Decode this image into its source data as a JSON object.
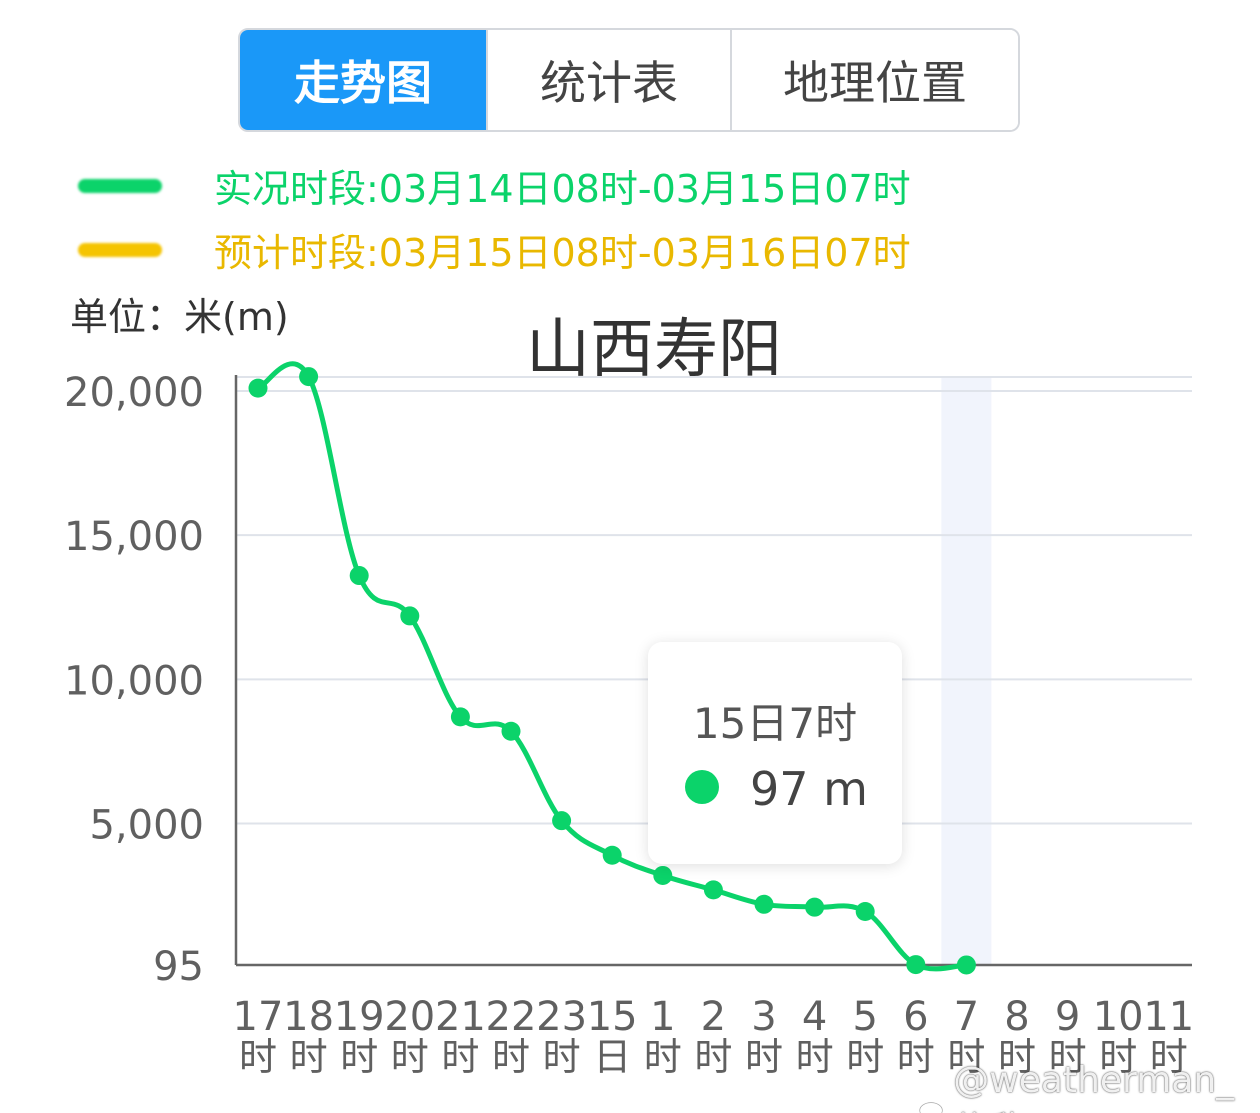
{
  "tabs": [
    {
      "label": "走势图",
      "active": true
    },
    {
      "label": "统计表",
      "active": false
    },
    {
      "label": "地理位置",
      "active": false
    }
  ],
  "legend": [
    {
      "label": "实况时段:03月14日08时-03月15日07时",
      "color": "#0bd36a"
    },
    {
      "label": "预计时段:03月15日08时-03月16日07时",
      "color": "#f5c400"
    }
  ],
  "unit_label": "单位：米(m)",
  "tooltip": {
    "title": "15日7时",
    "value": "97 m",
    "dot_color": "#0bd36a"
  },
  "watermark": "@weatherman_信欣",
  "chart_data": {
    "type": "line",
    "title": "山西寿阳",
    "ylabel": "单位：米(m)",
    "ylim": [
      95,
      20000
    ],
    "yticks": [
      {
        "value": 95,
        "label": "95"
      },
      {
        "value": 5000,
        "label": "5,000"
      },
      {
        "value": 10000,
        "label": "10,000"
      },
      {
        "value": 15000,
        "label": "15,000"
      },
      {
        "value": 20000,
        "label": "20,000"
      }
    ],
    "grid": true,
    "x_labels": [
      [
        "17",
        "时"
      ],
      [
        "18",
        "时"
      ],
      [
        "19",
        "时"
      ],
      [
        "20",
        "时"
      ],
      [
        "21",
        "时"
      ],
      [
        "22",
        "时"
      ],
      [
        "23",
        "时"
      ],
      [
        "15",
        "日"
      ],
      [
        "1",
        "时"
      ],
      [
        "2",
        "时"
      ],
      [
        "3",
        "时"
      ],
      [
        "4",
        "时"
      ],
      [
        "5",
        "时"
      ],
      [
        "6",
        "时"
      ],
      [
        "7",
        "时"
      ],
      [
        "8",
        "时"
      ],
      [
        "9",
        "时"
      ],
      [
        "10",
        "时"
      ],
      [
        "11",
        "时"
      ]
    ],
    "series": [
      {
        "color": "#0bd36a",
        "values": [
          20100,
          20500,
          13600,
          12200,
          8700,
          8200,
          5100,
          3900,
          3200,
          2700,
          2200,
          2100,
          1950,
          110,
          97
        ]
      }
    ],
    "highlight_index": 14
  }
}
